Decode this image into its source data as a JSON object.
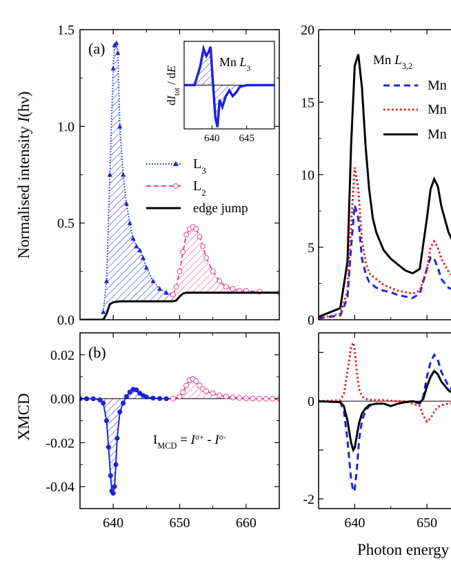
{
  "figure": {
    "xlabel": "Photon energy",
    "tick_font": "serif"
  },
  "chart_data": [
    {
      "id": "a",
      "type": "line",
      "panel_label": "(a)",
      "ylabel_text": "Normalised intensity",
      "ylabel_symbol": "I",
      "ylabel_unit": "(hν)",
      "xlim": [
        635,
        665
      ],
      "ylim": [
        0,
        1.5
      ],
      "xticks": [
        640,
        650,
        660
      ],
      "xtick_labels": [
        "640",
        "650",
        "660"
      ],
      "yticks": [
        0,
        0.5,
        1.0,
        1.5
      ],
      "ytick_labels": [
        "0.0",
        "0.5",
        "1.0",
        "1.5"
      ],
      "colors": {
        "L3": "#1f23d8",
        "L2": "#e8408f",
        "edge": "#000000"
      },
      "series": [
        {
          "name": "L",
          "sub": "3",
          "key": "L3",
          "x": [
            638.5,
            639.0,
            639.5,
            640.0,
            640.2,
            640.5,
            640.7,
            641.0,
            641.5,
            642.0,
            642.5,
            643.0,
            643.5,
            644.0,
            644.5,
            645.0,
            646.0,
            647.0,
            648.0,
            649.0
          ],
          "y": [
            0.04,
            0.2,
            0.75,
            1.3,
            1.42,
            1.43,
            1.38,
            1.0,
            0.75,
            0.6,
            0.5,
            0.42,
            0.38,
            0.36,
            0.32,
            0.27,
            0.2,
            0.16,
            0.14,
            0.13
          ]
        },
        {
          "name": "L",
          "sub": "2",
          "key": "L2",
          "x": [
            649.0,
            649.5,
            650.0,
            650.5,
            651.0,
            651.5,
            652.0,
            652.5,
            653.0,
            653.5,
            654.0,
            655.0,
            656.0,
            657.0,
            658.0,
            659.0,
            660.0,
            662.0,
            665.0
          ],
          "y": [
            0.13,
            0.17,
            0.25,
            0.35,
            0.44,
            0.47,
            0.48,
            0.47,
            0.43,
            0.38,
            0.32,
            0.25,
            0.2,
            0.17,
            0.16,
            0.15,
            0.15,
            0.145,
            0.14
          ]
        },
        {
          "name": "edge jump",
          "key": "edge",
          "x": [
            635,
            638.5,
            639.0,
            639.5,
            640.0,
            641.0,
            645.0,
            649.0,
            649.5,
            650.0,
            650.5,
            651.0,
            665.0
          ],
          "y": [
            0.0,
            0.0,
            0.03,
            0.08,
            0.09,
            0.095,
            0.095,
            0.095,
            0.1,
            0.12,
            0.135,
            0.14,
            0.14
          ]
        }
      ],
      "inset": {
        "label_text": "Mn",
        "label_symbol": "L",
        "label_sub": "3",
        "ylabel_d": "dI",
        "ylabel_sub": "tot",
        "ylabel_tail": " / dE",
        "xlim": [
          636,
          649
        ],
        "ylim": [
          -1.2,
          1.2
        ],
        "xticks": [
          640,
          645
        ],
        "xtick_labels": [
          "640",
          "645"
        ],
        "color": "#1f23d8",
        "x": [
          636,
          637.5,
          638.3,
          638.8,
          639.2,
          639.5,
          639.8,
          640.1,
          640.5,
          640.8,
          641.1,
          641.5,
          642.0,
          642.5,
          643.0,
          643.5,
          644.0,
          645.0,
          646.0,
          649.0
        ],
        "y": [
          0.0,
          0.0,
          0.5,
          1.0,
          0.8,
          0.9,
          1.05,
          0.2,
          -0.9,
          -1.15,
          -0.4,
          -0.6,
          -0.3,
          -0.15,
          -0.3,
          -0.2,
          -0.05,
          0.0,
          0.0,
          0.0
        ]
      }
    },
    {
      "id": "b",
      "type": "line",
      "panel_label": "(b)",
      "ylabel_text": "XMCD",
      "formula_main": "I",
      "formula_sub": "MCD",
      "formula_rest": " = I",
      "formula_sup1": "σ+",
      "formula_mid": " - I",
      "formula_sup2": "σ-",
      "xlim": [
        635,
        665
      ],
      "ylim": [
        -0.05,
        0.03
      ],
      "xticks": [
        640,
        650,
        660
      ],
      "xtick_labels": [
        "640",
        "650",
        "660"
      ],
      "yticks": [
        -0.04,
        -0.02,
        0.0,
        0.02
      ],
      "ytick_labels": [
        "-0.04",
        "-0.02",
        "0.00",
        "0.02"
      ],
      "colors": {
        "L3": "#1f23d8",
        "L2": "#e8408f"
      },
      "series": [
        {
          "name": "L3",
          "key": "L3",
          "x": [
            635.0,
            636.0,
            637.0,
            638.0,
            638.5,
            639.0,
            639.3,
            639.6,
            639.8,
            640.0,
            640.2,
            640.4,
            640.6,
            641.0,
            641.5,
            642.0,
            642.5,
            643.0,
            643.5,
            644.0,
            644.5,
            645.0,
            646.0,
            647.0,
            648.0,
            649.0
          ],
          "y": [
            0.0,
            0.0,
            0.0,
            -0.0005,
            -0.002,
            -0.01,
            -0.022,
            -0.035,
            -0.042,
            -0.043,
            -0.04,
            -0.03,
            -0.018,
            -0.006,
            -0.002,
            0.001,
            0.003,
            0.0043,
            0.004,
            0.0025,
            0.0015,
            0.0008,
            0.0003,
            0.0001,
            0.0,
            0.0
          ]
        },
        {
          "name": "L2",
          "key": "L2",
          "x": [
            649.0,
            650.0,
            650.5,
            651.0,
            651.5,
            652.0,
            652.5,
            653.0,
            653.5,
            654.0,
            655.0,
            656.0,
            657.0,
            658.0,
            659.0,
            660.0,
            661.0,
            662.0,
            663.0,
            664.0,
            665.0
          ],
          "y": [
            0.0,
            0.001,
            0.003,
            0.006,
            0.0085,
            0.009,
            0.008,
            0.006,
            0.0045,
            0.0035,
            0.0025,
            0.0015,
            0.001,
            0.0006,
            0.0004,
            0.0002,
            0.0001,
            0.0,
            0.0,
            0.0,
            0.0
          ]
        }
      ]
    },
    {
      "id": "c",
      "type": "line",
      "xlim": [
        635,
        656
      ],
      "ylim": [
        0,
        20
      ],
      "xticks": [
        640,
        650
      ],
      "yticks": [
        0,
        5,
        10,
        15,
        20
      ],
      "ytick_labels": [
        "0",
        "5",
        "10",
        "15",
        "20"
      ],
      "legend_title_text": "Mn",
      "legend_title_symbol": "L",
      "legend_title_sub": "3,2",
      "series": [
        {
          "name": "Mn",
          "color": "#1f23d8",
          "dash": "blue",
          "x": [
            635,
            638,
            639,
            639.5,
            640,
            640.5,
            641,
            641.5,
            642,
            643,
            644,
            645,
            646,
            647,
            648,
            649,
            650,
            650.5,
            651,
            651.5,
            652,
            653,
            654,
            655,
            656
          ],
          "y": [
            0.1,
            0.3,
            1.5,
            5.0,
            7.9,
            7.0,
            4.2,
            3.2,
            2.6,
            2.2,
            2.0,
            1.9,
            1.7,
            1.6,
            1.5,
            1.8,
            3.5,
            4.3,
            4.2,
            3.6,
            2.8,
            2.2,
            2.0,
            1.9,
            1.8
          ]
        },
        {
          "name": "Mn",
          "color": "#e41a1c",
          "dash": "red",
          "x": [
            635,
            638,
            639,
            639.5,
            640,
            640.5,
            641,
            641.5,
            642,
            643,
            644,
            645,
            646,
            647,
            648,
            649,
            650,
            650.5,
            651,
            651.5,
            652,
            653,
            654,
            655,
            656
          ],
          "y": [
            0.1,
            0.4,
            2.0,
            6.5,
            10.5,
            9.0,
            5.5,
            4.0,
            3.2,
            2.8,
            2.4,
            2.2,
            2.0,
            1.9,
            1.8,
            2.0,
            3.5,
            5.0,
            5.4,
            5.0,
            4.2,
            3.3,
            2.8,
            2.4,
            2.2
          ]
        },
        {
          "name": "Mn",
          "color": "#000000",
          "dash": "solid",
          "x": [
            635,
            638,
            639,
            639.5,
            640,
            640.5,
            641,
            641.5,
            642,
            642.5,
            643,
            644,
            645,
            646,
            647,
            648,
            649,
            650,
            650.5,
            651,
            651.5,
            652,
            653,
            654,
            655,
            656
          ],
          "y": [
            0.2,
            0.8,
            4.0,
            12.0,
            17.5,
            18.3,
            16.0,
            12.0,
            9.0,
            7.0,
            6.0,
            4.8,
            4.2,
            3.8,
            3.4,
            3.2,
            3.5,
            7.0,
            9.0,
            9.7,
            9.2,
            7.8,
            6.0,
            5.0,
            4.4,
            4.0
          ]
        }
      ]
    },
    {
      "id": "d",
      "type": "line",
      "xlim": [
        635,
        656
      ],
      "ylim": [
        -2.2,
        1.4
      ],
      "xticks": [
        640,
        650
      ],
      "xtick_labels": [
        "640",
        "650"
      ],
      "yticks": [
        -2,
        -1,
        0,
        1
      ],
      "ytick_labels": [
        "-2",
        "",
        "0",
        ""
      ],
      "series": [
        {
          "color": "#1f23d8",
          "dash": "blue",
          "x": [
            635,
            638,
            638.5,
            639,
            639.5,
            639.8,
            640,
            640.3,
            640.6,
            641,
            641.5,
            642,
            643,
            644,
            645,
            646,
            647,
            648,
            649,
            649.5,
            650,
            650.5,
            651,
            651.5,
            652,
            653,
            654,
            655,
            656
          ],
          "y": [
            0,
            -0.02,
            -0.2,
            -0.8,
            -1.6,
            -1.85,
            -1.8,
            -1.4,
            -0.8,
            -0.4,
            -0.2,
            -0.1,
            -0.05,
            -0.05,
            -0.1,
            -0.05,
            -0.02,
            0,
            -0.05,
            0.1,
            0.5,
            0.8,
            0.95,
            0.85,
            0.6,
            0.3,
            0.15,
            0.1,
            0.05
          ]
        },
        {
          "color": "#e41a1c",
          "dash": "red",
          "x": [
            635,
            638,
            638.5,
            639,
            639.5,
            639.8,
            640,
            640.3,
            640.6,
            641,
            641.5,
            642,
            643,
            644,
            645,
            646,
            647,
            648,
            649,
            649.5,
            650,
            650.5,
            651,
            651.5,
            652,
            653,
            654,
            655,
            656
          ],
          "y": [
            0,
            0.02,
            0.15,
            0.6,
            1.1,
            1.2,
            1.05,
            0.6,
            0.25,
            0.1,
            0.05,
            0.03,
            0.02,
            0.02,
            0.01,
            0,
            0,
            -0.05,
            -0.1,
            -0.3,
            -0.42,
            -0.35,
            -0.22,
            -0.12,
            -0.08,
            -0.05,
            -0.03,
            -0.02,
            -0.01
          ]
        },
        {
          "color": "#000000",
          "dash": "solid",
          "x": [
            635,
            638,
            638.5,
            639,
            639.5,
            639.8,
            640,
            640.3,
            640.6,
            641,
            641.5,
            642,
            643,
            644,
            645,
            646,
            647,
            648,
            649,
            649.5,
            650,
            650.5,
            651,
            651.5,
            652,
            653,
            654,
            655,
            656
          ],
          "y": [
            0,
            -0.02,
            -0.1,
            -0.4,
            -0.85,
            -1.0,
            -0.95,
            -0.7,
            -0.45,
            -0.25,
            -0.15,
            -0.08,
            -0.05,
            -0.05,
            -0.1,
            -0.05,
            -0.02,
            0,
            -0.03,
            0.05,
            0.3,
            0.5,
            0.62,
            0.55,
            0.4,
            0.22,
            0.12,
            0.08,
            0.05
          ]
        }
      ]
    }
  ]
}
